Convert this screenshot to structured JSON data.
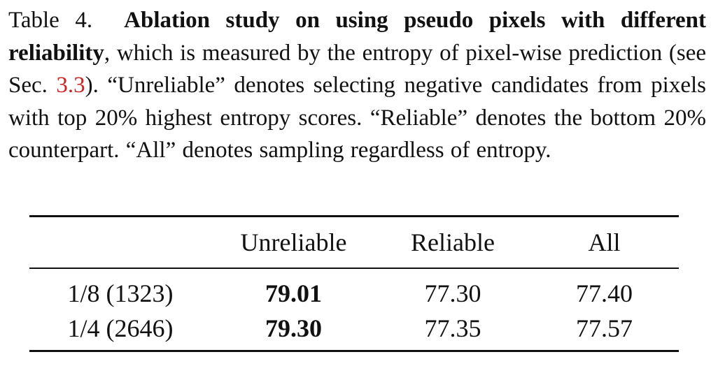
{
  "caption": {
    "label": "Table 4.",
    "title": "Ablation study on using pseudo pixels with different reliability",
    "text_1": ", which is measured by the entropy of pixel-wise prediction (see Sec. ",
    "ref": "3.3",
    "text_2": "). “Unreliable” denotes selecting negative candidates from pixels with top 20% highest entropy scores. “Reliable” denotes the bottom 20% counterpart.  “All” denotes sampling regardless of entropy."
  },
  "table": {
    "headers": [
      "",
      "Unreliable",
      "Reliable",
      "All"
    ],
    "rows": [
      {
        "label": "1/8 (1323)",
        "unreliable": "79.01",
        "reliable": "77.30",
        "all": "77.40"
      },
      {
        "label": "1/4 (2646)",
        "unreliable": "79.30",
        "reliable": "77.35",
        "all": "77.57"
      }
    ]
  }
}
